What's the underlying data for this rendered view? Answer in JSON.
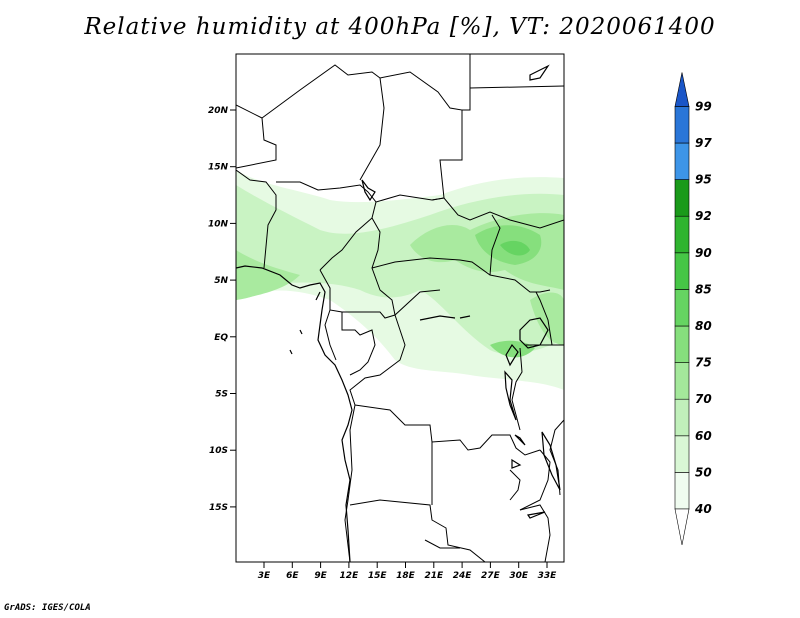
{
  "title": "Relative humidity at 400hPa [%], VT: 2020061400",
  "credit": "GrADS: IGES/COLA",
  "map": {
    "lat_labels": [
      "20N",
      "15N",
      "10N",
      "5N",
      "EQ",
      "5S",
      "10S",
      "15S"
    ],
    "lon_labels": [
      "3E",
      "6E",
      "9E",
      "12E",
      "15E",
      "18E",
      "21E",
      "24E",
      "27E",
      "30E",
      "33E"
    ]
  },
  "colorbar": {
    "labels": [
      "40",
      "50",
      "60",
      "70",
      "75",
      "80",
      "85",
      "90",
      "92",
      "95",
      "97",
      "99"
    ],
    "colors": [
      "#f0fcf0",
      "#d9f7d5",
      "#c1f0bb",
      "#a4e89b",
      "#86df7d",
      "#66d462",
      "#46c646",
      "#2fb42f",
      "#1a9a1a",
      "#3d95e8",
      "#2a76d8",
      "#1a56c8"
    ]
  },
  "colors": {
    "land_line": "#000000",
    "frame": "#000000"
  }
}
